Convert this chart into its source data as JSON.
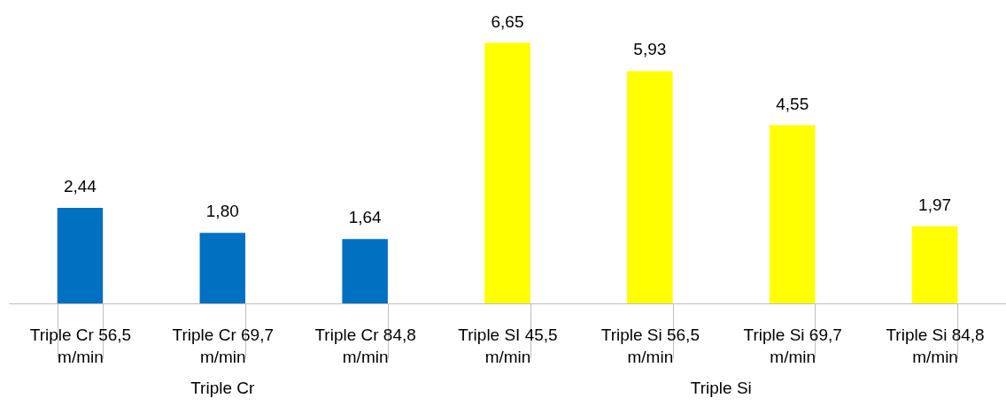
{
  "chart_data": {
    "type": "bar",
    "categories": [
      "Triple Cr 56,5 m/min",
      "Triple Cr 69,7 m/min",
      "Triple Cr 84,8 m/min",
      "Triple SI 45,5 m/min",
      "Triple Si 56,5 m/min",
      "Triple Si 69,7 m/min",
      "Triple Si 84,8 m/min"
    ],
    "values": [
      2.44,
      1.8,
      1.64,
      6.65,
      5.93,
      4.55,
      1.97
    ],
    "colors": [
      "#0070c0",
      "#0070c0",
      "#0070c0",
      "#ffff00",
      "#ffff00",
      "#ffff00",
      "#ffff00"
    ],
    "value_labels": [
      "2,44",
      "1,80",
      "1,64",
      "6,65",
      "5,93",
      "4,55",
      "1,97"
    ],
    "annotations": [
      "Triple Cr",
      "Triple Si"
    ],
    "grid": false
  }
}
